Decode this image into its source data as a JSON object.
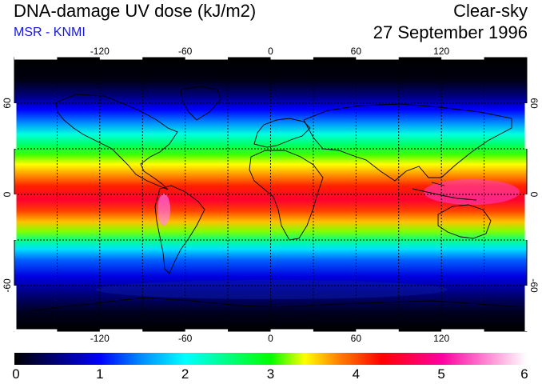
{
  "header": {
    "title": "DNA-damage UV dose (kJ/m2)",
    "source": "MSR - KNMI",
    "condition": "Clear-sky",
    "date": "27 September 1996"
  },
  "map": {
    "projection": "equirectangular",
    "lon_range": [
      -180,
      180
    ],
    "lat_range": [
      -90,
      90
    ],
    "grid": "dashed",
    "lon_ticks": [
      {
        "value": -120,
        "label": "-120"
      },
      {
        "value": -60,
        "label": "-60"
      },
      {
        "value": 0,
        "label": "0"
      },
      {
        "value": 60,
        "label": "60"
      },
      {
        "value": 120,
        "label": "120"
      }
    ],
    "lat_ticks": [
      {
        "value": 60,
        "label": "60"
      },
      {
        "value": 0,
        "label": "0"
      },
      {
        "value": -60,
        "label": "-60"
      }
    ],
    "background_color": "#000000",
    "coastline_color": "#000000"
  },
  "colorbar": {
    "min": 0,
    "max": 6,
    "labels": [
      "0",
      "1",
      "2",
      "3",
      "4",
      "5",
      "6"
    ],
    "stops": [
      {
        "value": 0.0,
        "color": "#000000"
      },
      {
        "value": 0.5,
        "color": "#00007a"
      },
      {
        "value": 1.0,
        "color": "#0000ff"
      },
      {
        "value": 1.5,
        "color": "#0090ff"
      },
      {
        "value": 2.0,
        "color": "#00ffff"
      },
      {
        "value": 2.5,
        "color": "#00ff80"
      },
      {
        "value": 3.0,
        "color": "#00ff00"
      },
      {
        "value": 3.4,
        "color": "#ffff00"
      },
      {
        "value": 3.8,
        "color": "#ff8000"
      },
      {
        "value": 4.3,
        "color": "#ff0000"
      },
      {
        "value": 5.0,
        "color": "#ff00a0"
      },
      {
        "value": 6.0,
        "color": "#ffffff"
      }
    ]
  }
}
